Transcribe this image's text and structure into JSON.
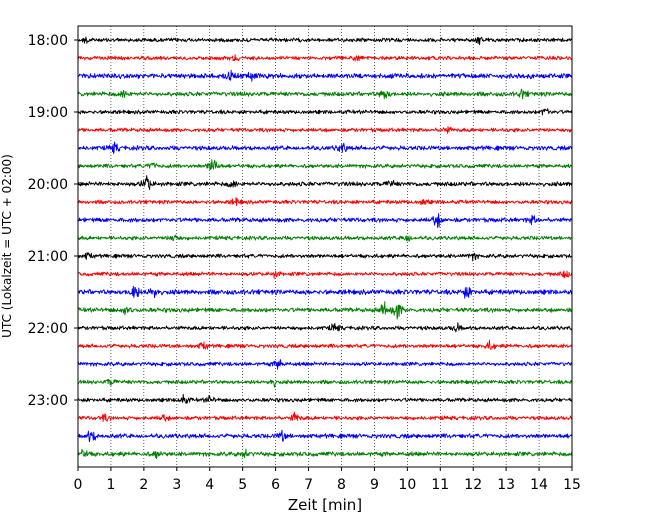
{
  "chart_data": {
    "type": "line",
    "title": "",
    "xlabel": "Zeit  [min]",
    "ylabel": "UTC (Lokalzeit = UTC + 02:00)",
    "xlim": [
      0,
      15
    ],
    "x_ticks": [
      "0",
      "1",
      "2",
      "3",
      "4",
      "5",
      "6",
      "7",
      "8",
      "9",
      "10",
      "11",
      "12",
      "13",
      "14",
      "15"
    ],
    "y_ticks": [
      "18:00",
      "19:00",
      "20:00",
      "21:00",
      "22:00",
      "23:00"
    ],
    "grid": "vertical-dotted",
    "trace_interval_minutes": 15,
    "traces": [
      {
        "start": "18:00",
        "color": "#000000",
        "amplitude": 0.35,
        "events": [
          {
            "t": 0.3,
            "amp": 0.6
          },
          {
            "t": 12.2,
            "amp": 0.5
          }
        ]
      },
      {
        "start": "18:15",
        "color": "#ff0000",
        "amplitude": 0.35,
        "events": [
          {
            "t": 4.8,
            "amp": 0.55
          },
          {
            "t": 8.5,
            "amp": 0.5
          }
        ]
      },
      {
        "start": "18:30",
        "color": "#0000ff",
        "amplitude": 0.45,
        "events": [
          {
            "t": 4.6,
            "amp": 0.9
          },
          {
            "t": 5.3,
            "amp": 0.8
          }
        ]
      },
      {
        "start": "18:45",
        "color": "#008000",
        "amplitude": 0.4,
        "events": [
          {
            "t": 1.4,
            "amp": 0.7
          },
          {
            "t": 9.3,
            "amp": 0.9
          },
          {
            "t": 13.5,
            "amp": 0.6
          }
        ]
      },
      {
        "start": "19:00",
        "color": "#000000",
        "amplitude": 0.35,
        "events": [
          {
            "t": 14.2,
            "amp": 0.6
          }
        ]
      },
      {
        "start": "19:15",
        "color": "#ff0000",
        "amplitude": 0.35,
        "events": [
          {
            "t": 11.2,
            "amp": 0.5
          }
        ]
      },
      {
        "start": "19:30",
        "color": "#0000ff",
        "amplitude": 0.4,
        "events": [
          {
            "t": 1.1,
            "amp": 0.7
          },
          {
            "t": 8.0,
            "amp": 0.8
          }
        ]
      },
      {
        "start": "19:45",
        "color": "#008000",
        "amplitude": 0.35,
        "events": [
          {
            "t": 4.1,
            "amp": 1.5
          },
          {
            "t": 2.3,
            "amp": 0.5
          }
        ]
      },
      {
        "start": "20:00",
        "color": "#000000",
        "amplitude": 0.4,
        "events": [
          {
            "t": 2.1,
            "amp": 1.3
          },
          {
            "t": 4.7,
            "amp": 0.6
          },
          {
            "t": 9.5,
            "amp": 0.5
          }
        ]
      },
      {
        "start": "20:15",
        "color": "#ff0000",
        "amplitude": 0.35,
        "events": [
          {
            "t": 4.8,
            "amp": 0.5
          },
          {
            "t": 10.5,
            "amp": 0.4
          }
        ]
      },
      {
        "start": "20:30",
        "color": "#0000ff",
        "amplitude": 0.4,
        "events": [
          {
            "t": 10.9,
            "amp": 1.1
          },
          {
            "t": 13.8,
            "amp": 0.6
          }
        ]
      },
      {
        "start": "20:45",
        "color": "#008000",
        "amplitude": 0.35,
        "events": [
          {
            "t": 2.9,
            "amp": 0.6
          },
          {
            "t": 10.0,
            "amp": 0.6
          }
        ]
      },
      {
        "start": "21:00",
        "color": "#000000",
        "amplitude": 0.35,
        "events": [
          {
            "t": 0.3,
            "amp": 0.5
          },
          {
            "t": 12.0,
            "amp": 0.5
          }
        ]
      },
      {
        "start": "21:15",
        "color": "#ff0000",
        "amplitude": 0.35,
        "events": [
          {
            "t": 6.0,
            "amp": 0.5
          },
          {
            "t": 14.8,
            "amp": 0.5
          }
        ]
      },
      {
        "start": "21:30",
        "color": "#0000ff",
        "amplitude": 0.45,
        "events": [
          {
            "t": 1.7,
            "amp": 1.4
          },
          {
            "t": 2.3,
            "amp": 1.3
          },
          {
            "t": 11.8,
            "amp": 0.9
          }
        ]
      },
      {
        "start": "21:45",
        "color": "#008000",
        "amplitude": 0.4,
        "events": [
          {
            "t": 1.5,
            "amp": 0.8
          },
          {
            "t": 9.3,
            "amp": 1.2
          },
          {
            "t": 9.7,
            "amp": 1.3
          }
        ]
      },
      {
        "start": "22:00",
        "color": "#000000",
        "amplitude": 0.35,
        "events": [
          {
            "t": 7.8,
            "amp": 0.6
          },
          {
            "t": 11.5,
            "amp": 0.6
          }
        ]
      },
      {
        "start": "22:15",
        "color": "#ff0000",
        "amplitude": 0.35,
        "events": [
          {
            "t": 3.8,
            "amp": 0.6
          },
          {
            "t": 12.5,
            "amp": 0.7
          }
        ]
      },
      {
        "start": "22:30",
        "color": "#0000ff",
        "amplitude": 0.35,
        "events": [
          {
            "t": 6.1,
            "amp": 0.8
          }
        ]
      },
      {
        "start": "22:45",
        "color": "#008000",
        "amplitude": 0.35,
        "events": [
          {
            "t": 5.9,
            "amp": 0.7
          },
          {
            "t": 1.0,
            "amp": 0.5
          }
        ]
      },
      {
        "start": "23:00",
        "color": "#000000",
        "amplitude": 0.35,
        "events": [
          {
            "t": 3.2,
            "amp": 0.8
          },
          {
            "t": 4.0,
            "amp": 0.5
          }
        ]
      },
      {
        "start": "23:15",
        "color": "#ff0000",
        "amplitude": 0.35,
        "events": [
          {
            "t": 6.6,
            "amp": 0.8
          },
          {
            "t": 0.8,
            "amp": 0.5
          },
          {
            "t": 2.6,
            "amp": 0.5
          }
        ]
      },
      {
        "start": "23:30",
        "color": "#0000ff",
        "amplitude": 0.4,
        "events": [
          {
            "t": 0.4,
            "amp": 0.9
          },
          {
            "t": 6.2,
            "amp": 0.8
          }
        ]
      },
      {
        "start": "23:45",
        "color": "#008000",
        "amplitude": 0.4,
        "events": [
          {
            "t": 0.2,
            "amp": 0.7
          },
          {
            "t": 2.4,
            "amp": 0.5
          },
          {
            "t": 5.1,
            "amp": 0.5
          }
        ]
      }
    ]
  }
}
